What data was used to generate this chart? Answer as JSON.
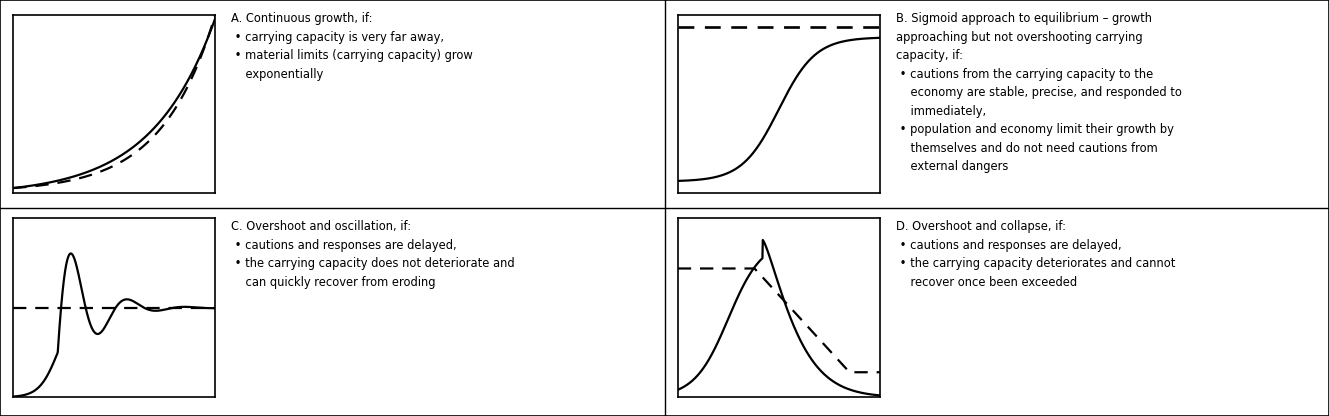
{
  "fig_width": 13.29,
  "fig_height": 4.16,
  "bg_color": "#ffffff",
  "border_color": "#000000",
  "texts": {
    "A": "A. Continuous growth, if:\n • carrying capacity is very far away,\n • material limits (carrying capacity) grow\n    exponentially",
    "B": "B. Sigmoid approach to equilibrium – growth\napproaching but not overshooting carrying\ncapacity, if:\n • cautions from the carrying capacity to the\n    economy are stable, precise, and responded to\n    immediately,\n • population and economy limit their growth by\n    themselves and do not need cautions from\n    external dangers",
    "C": "C. Overshoot and oscillation, if:\n • cautions and responses are delayed,\n • the carrying capacity does not deteriorate and\n    can quickly recover from eroding",
    "D": "D. Overshoot and collapse, if:\n • cautions and responses are delayed,\n • the carrying capacity deteriorates and cannot\n    recover once been exceeded"
  },
  "text_fontsize": 8.3,
  "line_width": 1.6,
  "dash_pattern": [
    6,
    4
  ]
}
